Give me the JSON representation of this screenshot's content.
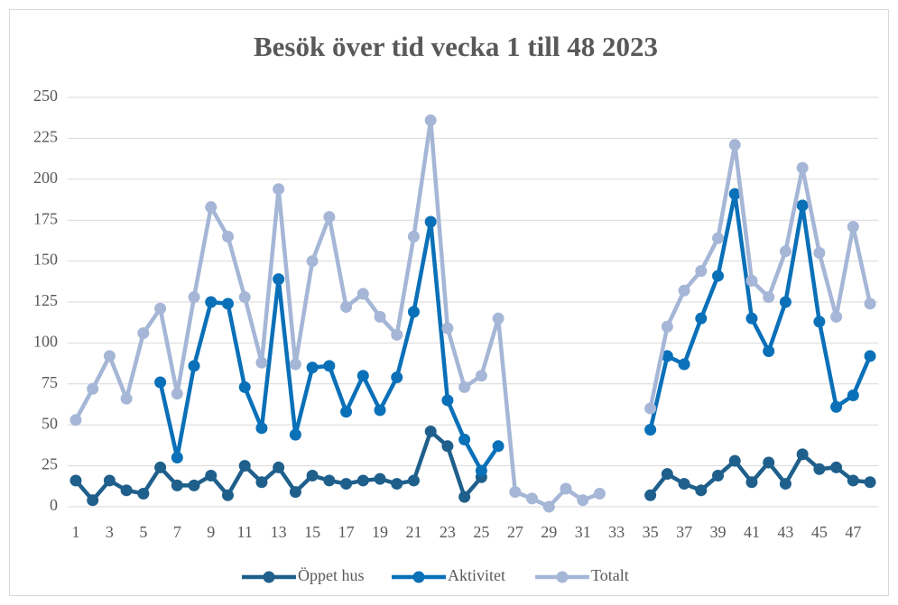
{
  "chart_data": {
    "type": "line",
    "title": "Besök över tid vecka 1 till 48 2023",
    "categories": [
      1,
      null,
      3,
      null,
      5,
      null,
      7,
      null,
      9,
      null,
      11,
      null,
      13,
      null,
      15,
      null,
      17,
      null,
      19,
      null,
      21,
      null,
      23,
      null,
      25,
      null,
      27,
      null,
      29,
      null,
      31,
      null,
      33,
      null,
      35,
      null,
      37,
      null,
      39,
      null,
      41,
      null,
      43,
      null,
      45,
      null,
      47,
      null
    ],
    "series": [
      {
        "name": "Öppet hus",
        "color": "#1f5f8b",
        "values": [
          16,
          4,
          16,
          10,
          8,
          24,
          13,
          13,
          19,
          7,
          25,
          15,
          24,
          9,
          19,
          16,
          14,
          16,
          17,
          14,
          16,
          46,
          37,
          6,
          18,
          null,
          null,
          null,
          null,
          null,
          null,
          null,
          null,
          null,
          7,
          20,
          14,
          10,
          19,
          28,
          15,
          27,
          14,
          32,
          23,
          24,
          16,
          15
        ]
      },
      {
        "name": "Aktivitet",
        "color": "#0a70b8",
        "values": [
          null,
          null,
          null,
          null,
          null,
          76,
          30,
          86,
          125,
          124,
          73,
          48,
          139,
          44,
          85,
          86,
          58,
          80,
          59,
          79,
          119,
          174,
          65,
          41,
          22,
          37,
          null,
          null,
          null,
          null,
          null,
          null,
          null,
          null,
          47,
          92,
          87,
          115,
          141,
          191,
          115,
          95,
          125,
          184,
          113,
          61,
          68,
          92
        ]
      },
      {
        "name": "Totalt",
        "color": "#a5b6d6",
        "values": [
          53,
          72,
          92,
          66,
          106,
          121,
          69,
          128,
          183,
          165,
          128,
          88,
          194,
          87,
          150,
          177,
          122,
          130,
          116,
          105,
          165,
          236,
          109,
          73,
          80,
          115,
          9,
          5,
          0,
          11,
          4,
          8,
          null,
          null,
          60,
          110,
          132,
          144,
          164,
          221,
          138,
          128,
          156,
          207,
          155,
          116,
          171,
          124
        ]
      }
    ],
    "ylim": [
      0,
      250
    ],
    "yticks": [
      0,
      25,
      50,
      75,
      100,
      125,
      150,
      175,
      200,
      225,
      250
    ],
    "grid": true,
    "legend": "bottom"
  }
}
